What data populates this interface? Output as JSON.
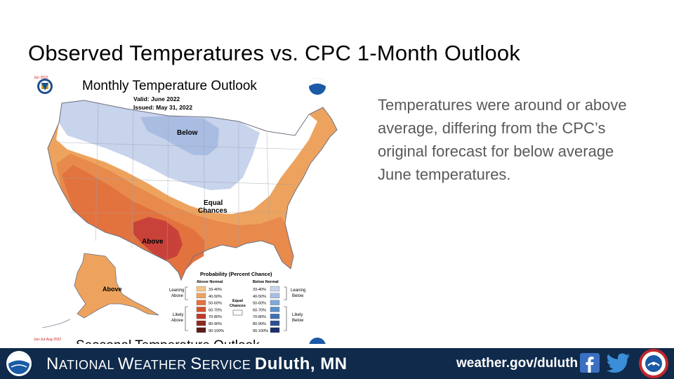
{
  "slide": {
    "title": "Observed Temperatures vs. CPC 1-Month Outlook",
    "body": "Temperatures were around or above average, differing from the CPC’s original forecast for below average June temperatures."
  },
  "map": {
    "small_date": "Jun 2022",
    "title": "Monthly Temperature Outlook",
    "valid": "Valid:  June 2022",
    "issued": "Issued:  May 31, 2022",
    "regions": {
      "below": "Below",
      "equal_1": "Equal",
      "equal_2": "Chances",
      "above": "Above",
      "alaska_above": "Above"
    },
    "legend": {
      "title": "Probability (Percent Chance)",
      "above_header": "Above Normal",
      "below_header": "Below Normal",
      "leaning_above_1": "Leaning",
      "leaning_above_2": "Above",
      "likely_above_1": "Likely",
      "likely_above_2": "Above",
      "leaning_below_1": "Leaning",
      "leaning_below_2": "Below",
      "likely_below_1": "Likely",
      "likely_below_2": "Below",
      "equal_1": "Equal",
      "equal_2": "Chances",
      "bins": [
        "33-40%",
        "40-50%",
        "50-60%",
        "60-70%",
        "70-80%",
        "80-90%",
        "90-100%"
      ],
      "above_colors": [
        "#f5c48a",
        "#eda35e",
        "#e3733e",
        "#d4522d",
        "#c0392b",
        "#8e2a1f",
        "#5a1c15"
      ],
      "below_colors": [
        "#c8d3ec",
        "#a9bde2",
        "#7fa7d8",
        "#5b8fca",
        "#3f6fb5",
        "#2a4f95",
        "#1b2f6b"
      ]
    },
    "bottom_date": "Jun-Jul-Aug 2022",
    "cut_title": "Seasonal Temperature Outlook"
  },
  "footer": {
    "nws_1": "N",
    "nws_2": "ATIONAL ",
    "nws_3": "W",
    "nws_4": "EATHER ",
    "nws_5": "S",
    "nws_6": "ERVICE ",
    "office": "Duluth, MN",
    "url": "weather.gov/duluth"
  },
  "icons": [
    "noaa-logo-icon",
    "doc-seal-icon",
    "facebook-icon",
    "twitter-icon",
    "weather-ready-nation-icon"
  ]
}
